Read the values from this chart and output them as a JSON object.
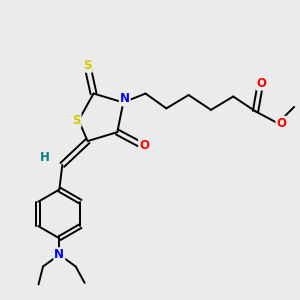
{
  "background_color": "#ebebeb",
  "atom_colors": {
    "C": "#000000",
    "H": "#008080",
    "N": "#0000ff",
    "O": "#ff0000",
    "S": "#cccc00"
  },
  "bg": "#ebebeb"
}
